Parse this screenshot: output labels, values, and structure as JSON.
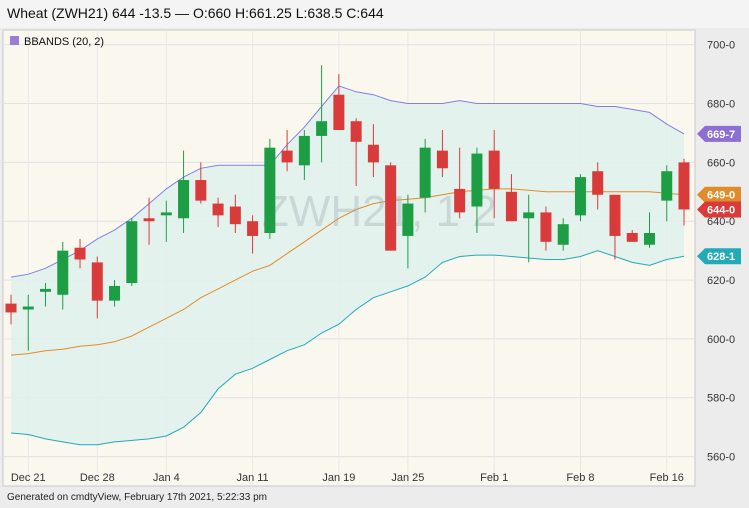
{
  "header": {
    "title": "Wheat (ZWH21) 644 -13.5 — O:660 H:661.25 L:638.5 C:644"
  },
  "footer": {
    "text": "Generated on cmdtyView, February 17th 2021, 5:22:33 pm"
  },
  "colors": {
    "up": "#1d9e45",
    "down": "#d93a3a",
    "band_fill": "#dff1ed",
    "upper_band": "#8080e0",
    "lower_band": "#22aab8",
    "middle_band": "#e08c2a",
    "legend_swatch": "#9a7fd1",
    "price_tag": "#d93a3a"
  },
  "chart_data": {
    "type": "candlestick",
    "legend": "BBANDS (20, 2)",
    "watermark": "ZWH21, 1 2",
    "ylim": [
      550,
      705
    ],
    "y_ticks": [
      560,
      580,
      600,
      620,
      640,
      660,
      680,
      700
    ],
    "y_tick_labels": [
      "560-0",
      "580-0",
      "600-0",
      "620-0",
      "640-0",
      "660-0",
      "680-0",
      "700-0"
    ],
    "x_ticks": [
      {
        "label": "Dec 21",
        "index": 1
      },
      {
        "label": "Dec 28",
        "index": 5
      },
      {
        "label": "Jan 4",
        "index": 9
      },
      {
        "label": "Jan 11",
        "index": 14
      },
      {
        "label": "Jan 19",
        "index": 19
      },
      {
        "label": "Jan 25",
        "index": 23
      },
      {
        "label": "Feb 1",
        "index": 28
      },
      {
        "label": "Feb 8",
        "index": 33
      },
      {
        "label": "Feb 16",
        "index": 38
      }
    ],
    "candles": [
      {
        "o": 612,
        "h": 615,
        "l": 605,
        "c": 609
      },
      {
        "o": 610,
        "h": 615,
        "l": 596,
        "c": 611
      },
      {
        "o": 616,
        "h": 619,
        "l": 611,
        "c": 617
      },
      {
        "o": 615,
        "h": 633,
        "l": 610,
        "c": 630
      },
      {
        "o": 631,
        "h": 634,
        "l": 624,
        "c": 627
      },
      {
        "o": 626,
        "h": 628,
        "l": 607,
        "c": 613
      },
      {
        "o": 613,
        "h": 620,
        "l": 611,
        "c": 618
      },
      {
        "o": 619,
        "h": 641,
        "l": 618,
        "c": 640
      },
      {
        "o": 641,
        "h": 648,
        "l": 632,
        "c": 640
      },
      {
        "o": 642,
        "h": 647,
        "l": 633,
        "c": 643
      },
      {
        "o": 641,
        "h": 664,
        "l": 636,
        "c": 654
      },
      {
        "o": 654,
        "h": 660,
        "l": 646,
        "c": 647
      },
      {
        "o": 646,
        "h": 648,
        "l": 638,
        "c": 642
      },
      {
        "o": 645,
        "h": 649,
        "l": 636,
        "c": 639
      },
      {
        "o": 640,
        "h": 642,
        "l": 629,
        "c": 635
      },
      {
        "o": 636,
        "h": 668,
        "l": 634,
        "c": 665
      },
      {
        "o": 664,
        "h": 671,
        "l": 657,
        "c": 660
      },
      {
        "o": 659,
        "h": 671,
        "l": 654,
        "c": 669
      },
      {
        "o": 669,
        "h": 693,
        "l": 660,
        "c": 674
      },
      {
        "o": 683,
        "h": 690,
        "l": 671,
        "c": 671
      },
      {
        "o": 674,
        "h": 675,
        "l": 652,
        "c": 667
      },
      {
        "o": 666,
        "h": 673,
        "l": 655,
        "c": 660
      },
      {
        "o": 659,
        "h": 660,
        "l": 630,
        "c": 630
      },
      {
        "o": 635,
        "h": 649,
        "l": 624,
        "c": 646
      },
      {
        "o": 648,
        "h": 668,
        "l": 643,
        "c": 665
      },
      {
        "o": 664,
        "h": 671,
        "l": 655,
        "c": 658
      },
      {
        "o": 651,
        "h": 665,
        "l": 641,
        "c": 643
      },
      {
        "o": 645,
        "h": 665,
        "l": 636,
        "c": 663
      },
      {
        "o": 664,
        "h": 671,
        "l": 641,
        "c": 651
      },
      {
        "o": 650,
        "h": 656,
        "l": 640,
        "c": 640
      },
      {
        "o": 641,
        "h": 649,
        "l": 626,
        "c": 643
      },
      {
        "o": 643,
        "h": 645,
        "l": 630,
        "c": 633
      },
      {
        "o": 632,
        "h": 641,
        "l": 630,
        "c": 639
      },
      {
        "o": 642,
        "h": 656,
        "l": 640,
        "c": 655
      },
      {
        "o": 657,
        "h": 660,
        "l": 644,
        "c": 649
      },
      {
        "o": 649,
        "h": 649,
        "l": 627,
        "c": 635
      },
      {
        "o": 636,
        "h": 637,
        "l": 633,
        "c": 633
      },
      {
        "o": 632,
        "h": 643,
        "l": 631,
        "c": 636
      },
      {
        "o": 647,
        "h": 659,
        "l": 640,
        "c": 657
      },
      {
        "o": 660,
        "h": 661.25,
        "l": 638.5,
        "c": 644
      }
    ],
    "bbands": {
      "upper": [
        621,
        622,
        624,
        627,
        630,
        634,
        637,
        641,
        646,
        651,
        655,
        658,
        659,
        659,
        659,
        659,
        666,
        672,
        679,
        686,
        684,
        683,
        681,
        680,
        680,
        680,
        681,
        680,
        680,
        680,
        680,
        680,
        680,
        680,
        679,
        679,
        678,
        677,
        673,
        669.7
      ],
      "middle": [
        594.5,
        595,
        596,
        596.5,
        597.5,
        598,
        599,
        601,
        604,
        607,
        610,
        614,
        617,
        620,
        623,
        625,
        629,
        633,
        637,
        641,
        644,
        646,
        647,
        647.5,
        648,
        649,
        650,
        650.5,
        651,
        651,
        650.5,
        650,
        650,
        650,
        650,
        650,
        650,
        650,
        649.5,
        649.0
      ],
      "lower": [
        568,
        567.5,
        566,
        565,
        564,
        564,
        565,
        565.5,
        566,
        567,
        570,
        575,
        583,
        588,
        590,
        593,
        596,
        598,
        602,
        605,
        610,
        614,
        616,
        618,
        621,
        626,
        628,
        628.5,
        628.5,
        628,
        627.5,
        627,
        627,
        628,
        630,
        628,
        626,
        625,
        627,
        628.1
      ]
    },
    "price_tags": [
      {
        "label": "669-7",
        "value": 669.7,
        "color": "#8c6fd3"
      },
      {
        "label": "649-0",
        "value": 649.0,
        "color": "#e08c2a"
      },
      {
        "label": "644-0",
        "value": 644.0,
        "color": "#d93a3a"
      },
      {
        "label": "628-1",
        "value": 628.1,
        "color": "#22aab8"
      }
    ]
  }
}
